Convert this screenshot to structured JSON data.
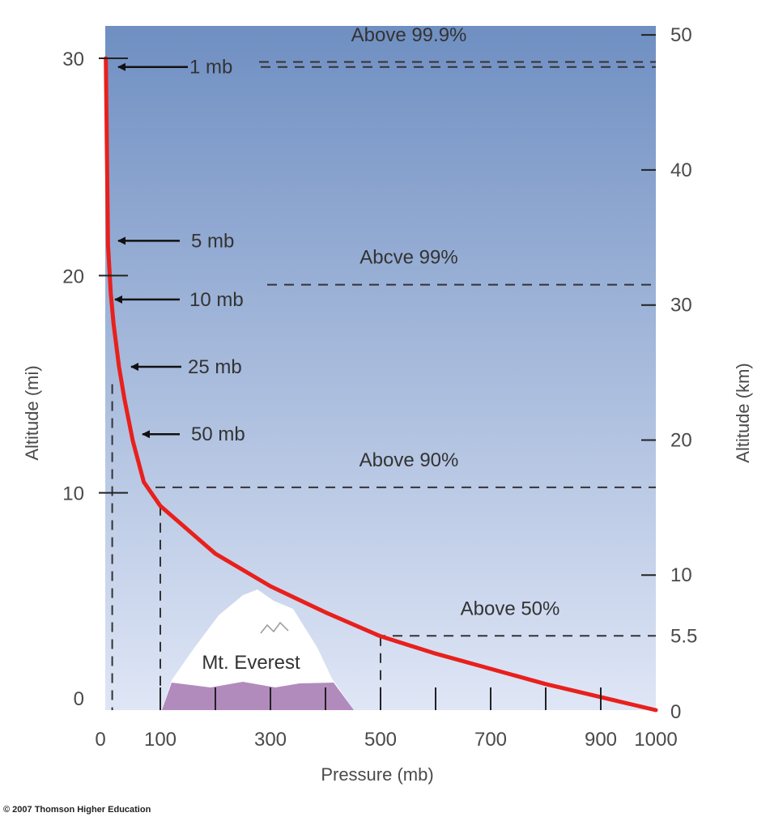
{
  "chart_data": {
    "type": "line",
    "title": "",
    "xlabel": "Pressure (mb)",
    "ylabel_left": "Altitude (mi)",
    "ylabel_right": "Altitude (km)",
    "xlim": [
      0,
      1000
    ],
    "ylim_mi": [
      0,
      31
    ],
    "x_ticks": [
      "0",
      "100",
      "300",
      "500",
      "700",
      "900",
      "1000"
    ],
    "x_tick_values": [
      0,
      100,
      300,
      500,
      700,
      900,
      1000
    ],
    "y_ticks_mi": [
      0,
      10,
      20,
      30
    ],
    "y_ticks_km": [
      {
        "label": "0",
        "km": 0
      },
      {
        "label": "5.5",
        "km": 5.5
      },
      {
        "label": "10",
        "km": 10
      },
      {
        "label": "20",
        "km": 20
      },
      {
        "label": "30",
        "km": 30
      },
      {
        "label": "40",
        "km": 40
      },
      {
        "label": "50",
        "km": 50
      }
    ],
    "series": [
      {
        "color": "#e8201c",
        "points": [
          [
            1000,
            0
          ],
          [
            900,
            0.6
          ],
          [
            800,
            1.2
          ],
          [
            700,
            1.9
          ],
          [
            600,
            2.6
          ],
          [
            500,
            3.4
          ],
          [
            400,
            4.5
          ],
          [
            300,
            5.7
          ],
          [
            200,
            7.2
          ],
          [
            100,
            9.4
          ],
          [
            70,
            10.5
          ],
          [
            50,
            12.4
          ],
          [
            35,
            14.3
          ],
          [
            25,
            15.8
          ],
          [
            15,
            17.8
          ],
          [
            10,
            19.2
          ],
          [
            5,
            21.4
          ],
          [
            1,
            30
          ]
        ]
      }
    ],
    "pressure_labels": [
      {
        "text": "1 mb",
        "mb": 1,
        "alt_mi": 29.6
      },
      {
        "text": "5 mb",
        "mb": 5,
        "alt_mi": 21.6
      },
      {
        "text": "10 mb",
        "mb": 10,
        "alt_mi": 18.9
      },
      {
        "text": "25 mb",
        "mb": 25,
        "alt_mi": 15.8
      },
      {
        "text": "50 mb",
        "mb": 50,
        "alt_mi": 12.7
      }
    ],
    "percent_labels": [
      {
        "text": "Above 99.9%",
        "alt_km": 48
      },
      {
        "text": "Abcve 99%",
        "alt_km": 31.5
      },
      {
        "text": "Above 90%",
        "alt_km": 16.5
      },
      {
        "text": "Above 50%",
        "alt_km": 5.5
      }
    ],
    "mountain_label": "Mt. Everest",
    "colors": {
      "sky_top": "#6f8fc2",
      "sky_bottom": "#dfe6f6",
      "curve": "#e8201c",
      "mountain": "#b28bbd"
    }
  },
  "copyright": "© 2007 Thomson Higher Education"
}
